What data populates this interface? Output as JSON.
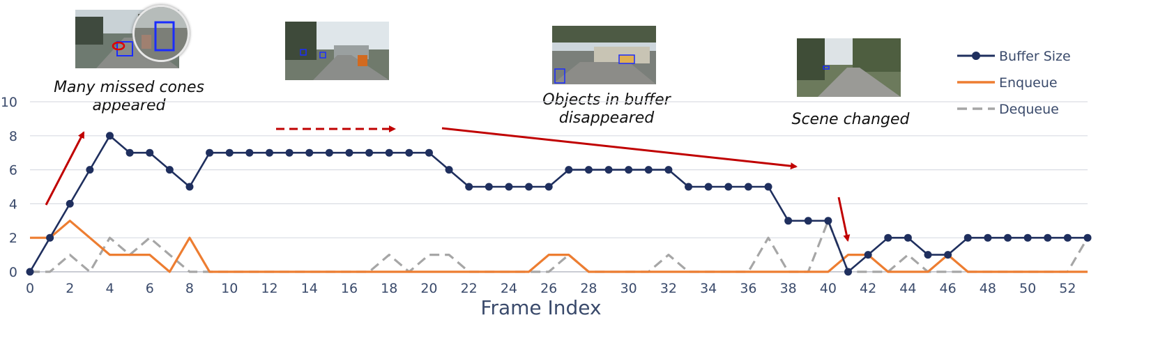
{
  "chart_data": {
    "type": "line",
    "xlabel": "Frame Index",
    "ylabel": "",
    "xlim": [
      0,
      53
    ],
    "ylim": [
      0,
      10
    ],
    "x_ticks": [
      0,
      2,
      4,
      6,
      8,
      10,
      12,
      14,
      16,
      18,
      20,
      22,
      24,
      26,
      28,
      30,
      32,
      34,
      36,
      38,
      40,
      42,
      44,
      46,
      48,
      50,
      52
    ],
    "y_ticks": [
      0,
      2,
      4,
      6,
      8,
      10
    ],
    "grid": "horizontal",
    "legend_position": "top-right",
    "x": [
      0,
      1,
      2,
      3,
      4,
      5,
      6,
      7,
      8,
      9,
      10,
      11,
      12,
      13,
      14,
      15,
      16,
      17,
      18,
      19,
      20,
      21,
      22,
      23,
      24,
      25,
      26,
      27,
      28,
      29,
      30,
      31,
      32,
      33,
      34,
      35,
      36,
      37,
      38,
      39,
      40,
      41,
      42,
      43,
      44,
      45,
      46,
      47,
      48,
      49,
      50,
      51,
      52,
      53
    ],
    "series": [
      {
        "name": "Buffer Size",
        "color": "#1f2f5e",
        "style": "solid-markers",
        "values": [
          0,
          2,
          4,
          6,
          8,
          7,
          7,
          6,
          5,
          7,
          7,
          7,
          7,
          7,
          7,
          7,
          7,
          7,
          7,
          7,
          7,
          6,
          5,
          5,
          5,
          5,
          5,
          6,
          6,
          6,
          6,
          6,
          6,
          5,
          5,
          5,
          5,
          5,
          3,
          3,
          3,
          0,
          1,
          2,
          2,
          1,
          1,
          2,
          2,
          2,
          2,
          2,
          2,
          2
        ]
      },
      {
        "name": "Enqueue",
        "color": "#ed7d31",
        "style": "solid",
        "values": [
          2,
          2,
          3,
          2,
          1,
          1,
          1,
          0,
          2,
          0,
          0,
          0,
          0,
          0,
          0,
          0,
          0,
          0,
          0,
          0,
          0,
          0,
          0,
          0,
          0,
          0,
          1,
          1,
          0,
          0,
          0,
          0,
          0,
          0,
          0,
          0,
          0,
          0,
          0,
          0,
          0,
          1,
          1,
          0,
          0,
          0,
          1,
          0,
          0,
          0,
          0,
          0,
          0,
          0
        ]
      },
      {
        "name": "Dequeue",
        "color": "#a6a6a6",
        "style": "dashed",
        "values": [
          0,
          0,
          1,
          0,
          2,
          1,
          2,
          1,
          0,
          0,
          0,
          0,
          0,
          0,
          0,
          0,
          0,
          0,
          1,
          0,
          1,
          1,
          0,
          0,
          0,
          0,
          0,
          1,
          0,
          0,
          0,
          0,
          1,
          0,
          0,
          0,
          0,
          2,
          0,
          0,
          3,
          0,
          0,
          0,
          1,
          0,
          0,
          0,
          0,
          0,
          0,
          0,
          0,
          2
        ]
      }
    ],
    "annotations": [
      {
        "text": "Many missed cones appeared"
      },
      {
        "text": "Objects in buffer disappeared"
      },
      {
        "text": "Scene changed"
      }
    ]
  },
  "captions": {
    "c1_line1": "Many missed cones",
    "c1_line2": "appeared",
    "c2_line1": "Objects in buffer",
    "c2_line2": "disappeared",
    "c3": "Scene changed"
  },
  "colors": {
    "grid": "#d9dce3",
    "axis": "#b8bcc6",
    "arrow": "#c00000"
  }
}
